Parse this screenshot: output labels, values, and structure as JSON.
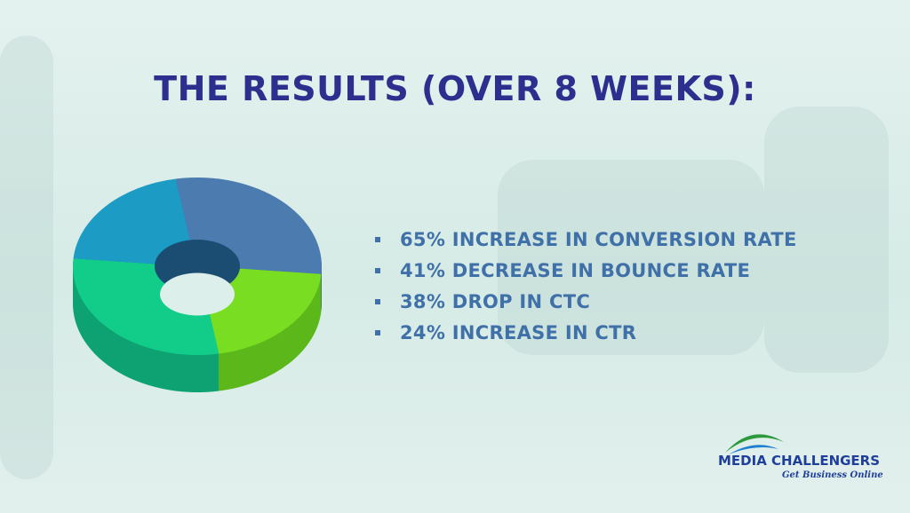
{
  "header": {
    "title": "THE RESULTS (OVER 8 WEEKS):"
  },
  "results": [
    "65% INCREASE IN CONVERSION RATE",
    "41% DECREASE IN BOUNCE RATE",
    "38% DROP IN CTC",
    "24% INCREASE IN CTR"
  ],
  "logo": {
    "name": "MEDIA CHALLENGERS",
    "tagline": "Get Business Online"
  }
}
